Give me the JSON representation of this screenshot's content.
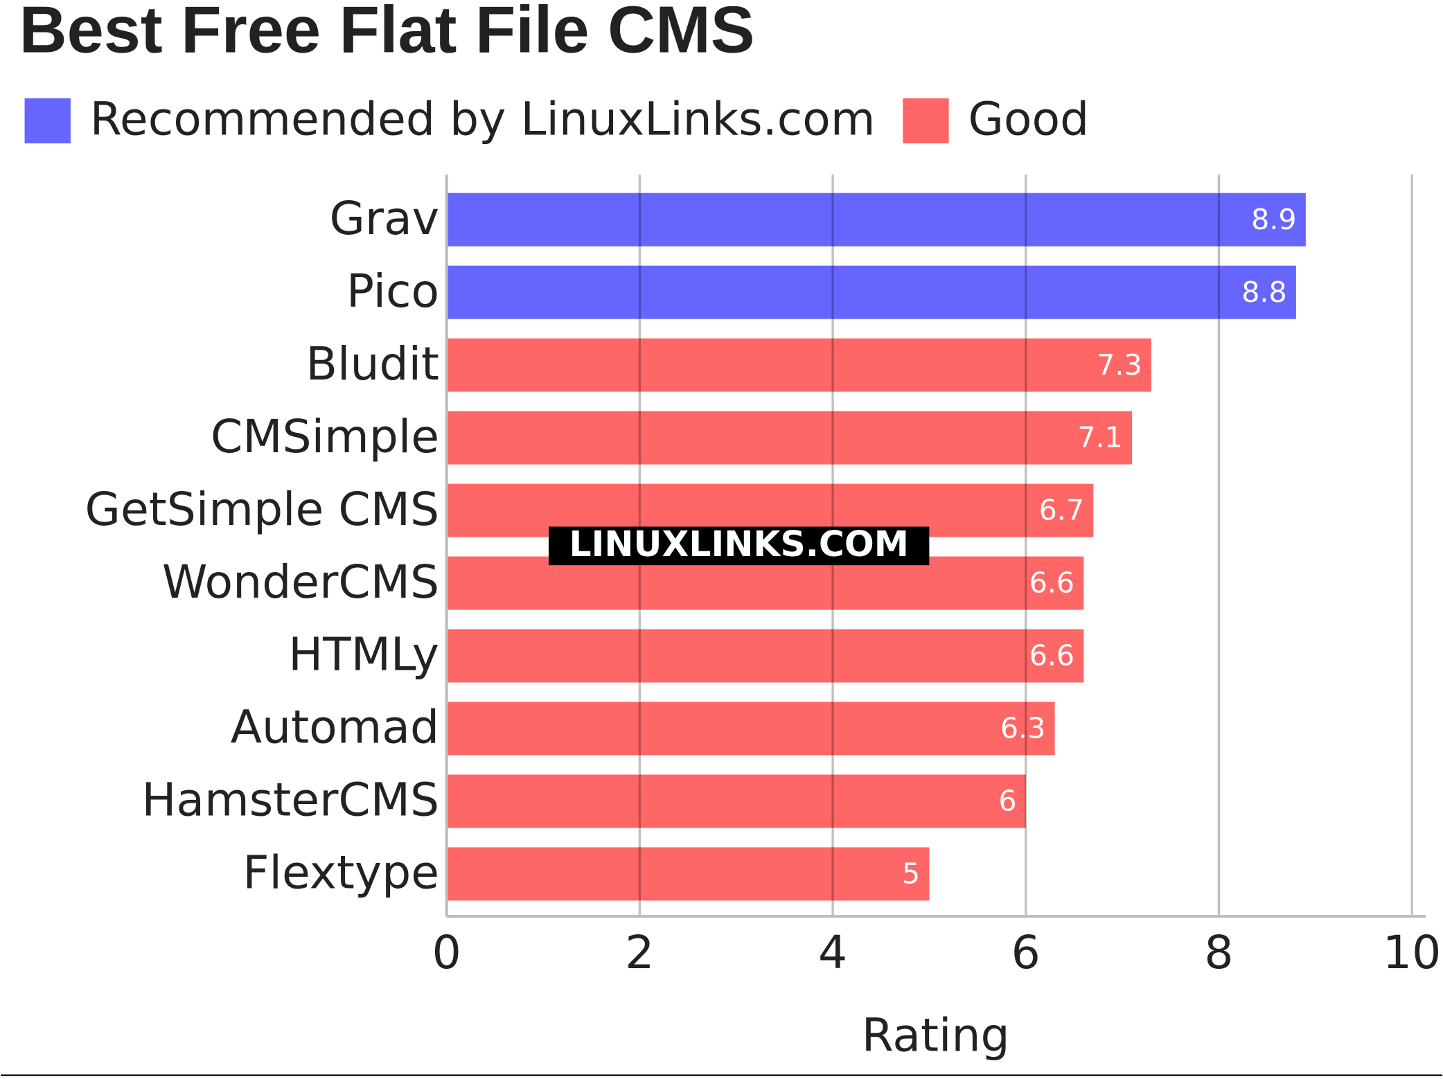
{
  "chart_data": {
    "type": "bar",
    "orientation": "horizontal",
    "title": "Best Free Flat File CMS",
    "xlabel": "Rating",
    "watermark": "LINUXLINKS.COM",
    "categories": [
      "Grav",
      "Pico",
      "Bludit",
      "CMSimple",
      "GetSimple CMS",
      "WonderCMS",
      "HTMLy",
      "Automad",
      "HamsterCMS",
      "Flextype"
    ],
    "series": [
      {
        "name": "Recommended by LinuxLinks.com",
        "color": "#6666ff",
        "values": [
          8.9,
          8.8,
          null,
          null,
          null,
          null,
          null,
          null,
          null,
          null
        ]
      },
      {
        "name": "Good",
        "color": "#ff6666",
        "values": [
          null,
          null,
          7.3,
          7.1,
          6.7,
          6.6,
          6.6,
          6.3,
          6,
          5
        ]
      }
    ],
    "xlim": [
      0,
      10
    ],
    "xticks": [
      0,
      2,
      4,
      6,
      8,
      10
    ],
    "grid": true
  }
}
